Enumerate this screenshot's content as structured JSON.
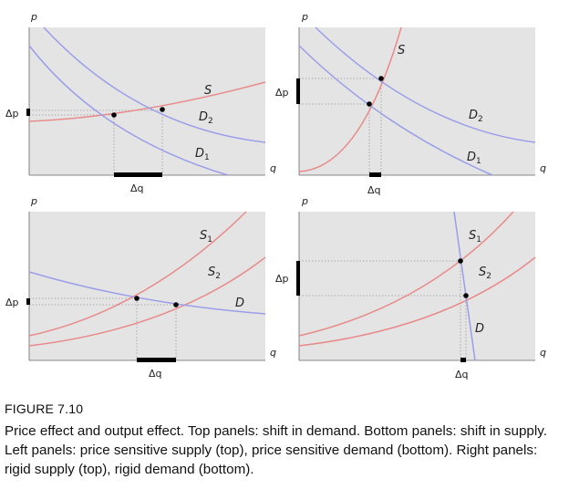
{
  "figure": {
    "label": "FIGURE 7.10",
    "caption": "Price effect and output effect. Top panels: shift in demand. Bottom panels: shift in supply. Left panels: price sensitive supply (top), price sensitive demand (bottom). Right panels: rigid supply (top), rigid demand (bottom)."
  },
  "colors": {
    "panel_bg": "#e4e4e4",
    "supply": "#e88a8a",
    "demand": "#9a9ee8",
    "guide": "#999999",
    "marker": "#000000"
  },
  "chart_data": [
    {
      "type": "line",
      "panel": "top-left",
      "ylabel": "p",
      "xlabel": "q",
      "series": [
        {
          "name": "S"
        },
        {
          "name": "D2"
        },
        {
          "name": "D1"
        }
      ],
      "annotations": [
        "Δp",
        "Δq"
      ]
    },
    {
      "type": "line",
      "panel": "top-right",
      "ylabel": "p",
      "xlabel": "q",
      "series": [
        {
          "name": "S"
        },
        {
          "name": "D2"
        },
        {
          "name": "D1"
        }
      ],
      "annotations": [
        "Δp",
        "Δq"
      ]
    },
    {
      "type": "line",
      "panel": "bottom-left",
      "ylabel": "p",
      "xlabel": "q",
      "series": [
        {
          "name": "S1"
        },
        {
          "name": "S2"
        },
        {
          "name": "D"
        }
      ],
      "annotations": [
        "Δp",
        "Δq"
      ]
    },
    {
      "type": "line",
      "panel": "bottom-right",
      "ylabel": "p",
      "xlabel": "q",
      "series": [
        {
          "name": "S1"
        },
        {
          "name": "S2"
        },
        {
          "name": "D"
        }
      ],
      "annotations": [
        "Δp",
        "Δq"
      ]
    }
  ]
}
